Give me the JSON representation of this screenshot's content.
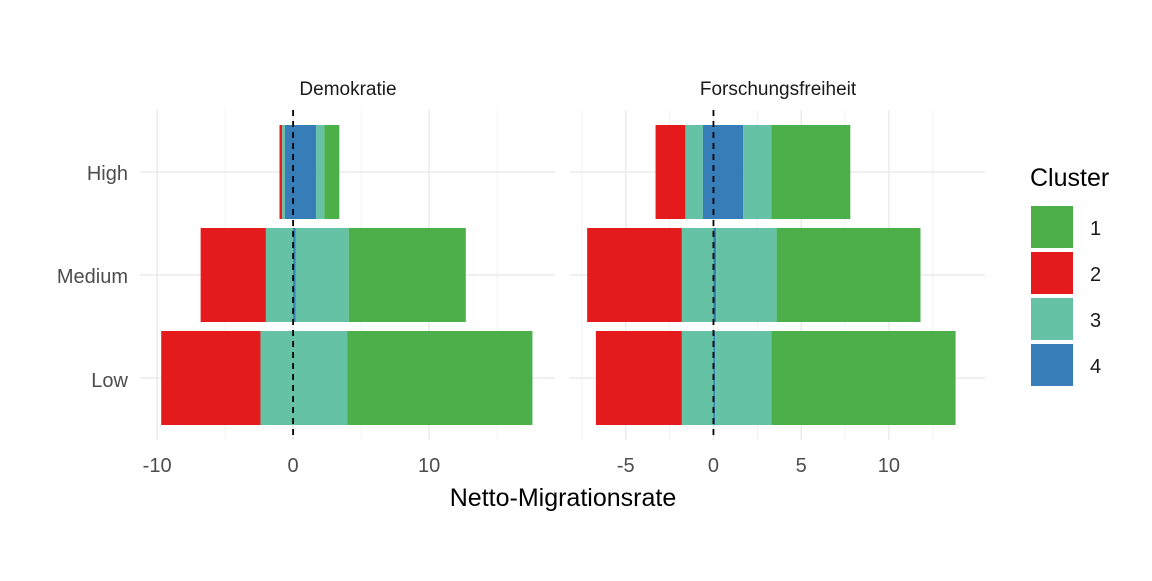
{
  "chart_data": {
    "type": "bar",
    "orientation": "horizontal",
    "stacking": "diverging",
    "xlabel": "Netto-Migrationsrate",
    "ylabel": "",
    "categories": [
      "High",
      "Medium",
      "Low"
    ],
    "legend": {
      "title": "Cluster",
      "placement": "right",
      "entries": [
        {
          "label": "1",
          "color": "#4DAF4A"
        },
        {
          "label": "2",
          "color": "#E41A1C"
        },
        {
          "label": "3",
          "color": "#66C2A5"
        },
        {
          "label": "4",
          "color": "#377EB8"
        }
      ]
    },
    "reference_line": {
      "x": 0,
      "style": "dashed"
    },
    "grid": true,
    "panels": [
      {
        "title": "Demokratie",
        "xlim": [
          -10,
          18
        ],
        "x_ticks": [
          -10,
          0,
          10
        ],
        "x_tick_labels": [
          "-10",
          "0",
          "10"
        ],
        "bars": {
          "High": [
            {
              "cluster": "2",
              "from": -1.0,
              "to": -0.8
            },
            {
              "cluster": "3",
              "from": -0.8,
              "to": -0.6
            },
            {
              "cluster": "4",
              "from": -0.6,
              "to": 1.7
            },
            {
              "cluster": "3",
              "from": 1.7,
              "to": 2.3
            },
            {
              "cluster": "1",
              "from": 2.3,
              "to": 3.4
            }
          ],
          "Medium": [
            {
              "cluster": "2",
              "from": -6.8,
              "to": -2.0
            },
            {
              "cluster": "3",
              "from": -2.0,
              "to": 0.0
            },
            {
              "cluster": "4",
              "from": 0.0,
              "to": 0.2
            },
            {
              "cluster": "3",
              "from": 0.2,
              "to": 4.1
            },
            {
              "cluster": "1",
              "from": 4.1,
              "to": 12.7
            }
          ],
          "Low": [
            {
              "cluster": "2",
              "from": -9.7,
              "to": -2.4
            },
            {
              "cluster": "3",
              "from": -2.4,
              "to": 4.0
            },
            {
              "cluster": "1",
              "from": 4.0,
              "to": 17.6
            }
          ]
        }
      },
      {
        "title": "Forschungsfreiheit",
        "xlim": [
          -7.2,
          14.5
        ],
        "x_ticks": [
          -5,
          0,
          5,
          10
        ],
        "x_tick_labels": [
          "-5",
          "0",
          "5",
          "10"
        ],
        "bars": {
          "High": [
            {
              "cluster": "2",
              "from": -3.3,
              "to": -1.6
            },
            {
              "cluster": "3",
              "from": -1.6,
              "to": -0.6
            },
            {
              "cluster": "4",
              "from": -0.6,
              "to": 1.7
            },
            {
              "cluster": "3",
              "from": 1.7,
              "to": 3.3
            },
            {
              "cluster": "1",
              "from": 3.3,
              "to": 7.8
            }
          ],
          "Medium": [
            {
              "cluster": "2",
              "from": -7.2,
              "to": -1.8
            },
            {
              "cluster": "3",
              "from": -1.8,
              "to": 0.0
            },
            {
              "cluster": "4",
              "from": 0.0,
              "to": 0.15
            },
            {
              "cluster": "3",
              "from": 0.15,
              "to": 3.6
            },
            {
              "cluster": "1",
              "from": 3.6,
              "to": 11.8
            }
          ],
          "Low": [
            {
              "cluster": "2",
              "from": -6.7,
              "to": -1.8
            },
            {
              "cluster": "3",
              "from": -1.8,
              "to": 0.0
            },
            {
              "cluster": "4",
              "from": 0.0,
              "to": 0.1
            },
            {
              "cluster": "3",
              "from": 0.1,
              "to": 3.3
            },
            {
              "cluster": "1",
              "from": 3.3,
              "to": 13.8
            }
          ]
        }
      }
    ]
  }
}
